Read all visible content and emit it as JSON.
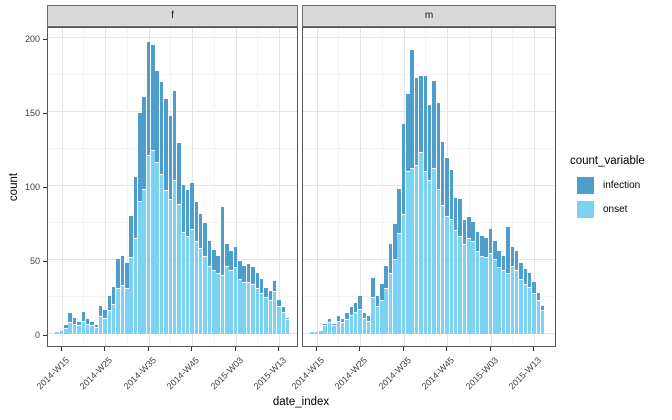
{
  "figure": {
    "y_axis": {
      "title": "count",
      "ticks": [
        0,
        50,
        100,
        150,
        200
      ],
      "minor_ticks": [
        25,
        75,
        125,
        175
      ]
    },
    "x_axis": {
      "title": "date_index",
      "tick_labels": [
        "2014-W15",
        "2014-W25",
        "2014-W35",
        "2014-W45",
        "2015-W03",
        "2015-W13"
      ],
      "tick_indices": [
        1,
        11,
        21,
        31,
        41,
        51
      ],
      "label_rotation_deg": 45
    },
    "legend": {
      "title": "count_variable",
      "position": "right",
      "items": [
        {
          "label": "infection",
          "color": "#4D9ECD"
        },
        {
          "label": "onset",
          "color": "#7CD3F1"
        }
      ]
    },
    "style": {
      "panel_background": "#FFFFFF",
      "strip_background": "#D9D9D9",
      "grid_major": "#E4E4E4",
      "grid_minor": "#F4F4F4",
      "bar_outline": "#FFFFFF"
    }
  },
  "chart_data": {
    "type": "bar",
    "stacked": true,
    "grid": "major+minor",
    "legend_position": "right",
    "title": "",
    "xlabel": "date_index",
    "ylabel": "count",
    "ylim": [
      0,
      200
    ],
    "x": [
      "2014-W14",
      "2014-W15",
      "2014-W16",
      "2014-W17",
      "2014-W18",
      "2014-W19",
      "2014-W20",
      "2014-W21",
      "2014-W22",
      "2014-W23",
      "2014-W24",
      "2014-W25",
      "2014-W26",
      "2014-W27",
      "2014-W28",
      "2014-W29",
      "2014-W30",
      "2014-W31",
      "2014-W32",
      "2014-W33",
      "2014-W34",
      "2014-W35",
      "2014-W36",
      "2014-W37",
      "2014-W38",
      "2014-W39",
      "2014-W40",
      "2014-W41",
      "2014-W42",
      "2014-W43",
      "2014-W44",
      "2014-W45",
      "2014-W46",
      "2014-W47",
      "2014-W48",
      "2014-W49",
      "2014-W50",
      "2014-W51",
      "2014-W52",
      "2015-W01",
      "2015-W02",
      "2015-W03",
      "2015-W04",
      "2015-W05",
      "2015-W06",
      "2015-W07",
      "2015-W08",
      "2015-W09",
      "2015-W10",
      "2015-W11",
      "2015-W12",
      "2015-W13",
      "2015-W14",
      "2015-W15"
    ],
    "facets": [
      {
        "name": "f",
        "series": [
          {
            "name": "infection",
            "values": [
              0,
              0,
              2,
              6,
              4,
              2,
              6,
              3,
              2,
              1,
              7,
              5,
              10,
              12,
              20,
              20,
              17,
              28,
              41,
              59,
              62,
              76,
              71,
              62,
              62,
              62,
              56,
              60,
              41,
              32,
              31,
              31,
              26,
              23,
              22,
              17,
              14,
              12,
              46,
              15,
              13,
              14,
              12,
              11,
              12,
              11,
              10,
              9,
              6,
              6,
              7,
              4,
              3,
              1
            ]
          },
          {
            "name": "onset",
            "values": [
              1,
              2,
              3,
              7,
              6,
              5,
              8,
              6,
              5,
              4,
              11,
              10,
              15,
              19,
              30,
              32,
              30,
              51,
              64,
              89,
              97,
              120,
              123,
              115,
              107,
              96,
              90,
              103,
              87,
              68,
              65,
              70,
              62,
              57,
              52,
              45,
              42,
              40,
              39,
              45,
              42,
              44,
              36,
              34,
              34,
              33,
              30,
              27,
              24,
              22,
              28,
              18,
              14,
              9
            ]
          }
        ]
      },
      {
        "name": "m",
        "series": [
          {
            "name": "infection",
            "values": [
              0,
              0,
              0,
              1,
              2,
              1,
              3,
              2,
              4,
              5,
              6,
              9,
              3,
              3,
              13,
              7,
              11,
              15,
              20,
              23,
              30,
              61,
              52,
              80,
              59,
              51,
              64,
              51,
              59,
              58,
              43,
              39,
              33,
              22,
              25,
              16,
              14,
              13,
              13,
              13,
              13,
              16,
              12,
              11,
              10,
              31,
              13,
              13,
              11,
              10,
              9,
              7,
              5,
              3
            ]
          },
          {
            "name": "onset",
            "values": [
              1,
              1,
              2,
              5,
              7,
              5,
              8,
              7,
              9,
              12,
              14,
              16,
              10,
              8,
              24,
              18,
              22,
              30,
              40,
              50,
              67,
              80,
              109,
              111,
              113,
              122,
              109,
              103,
              111,
              97,
              86,
              79,
              77,
              69,
              65,
              60,
              64,
              62,
              55,
              52,
              51,
              54,
              50,
              44,
              42,
              40,
              45,
              42,
              36,
              33,
              31,
              27,
              22,
              15
            ]
          }
        ]
      }
    ]
  }
}
